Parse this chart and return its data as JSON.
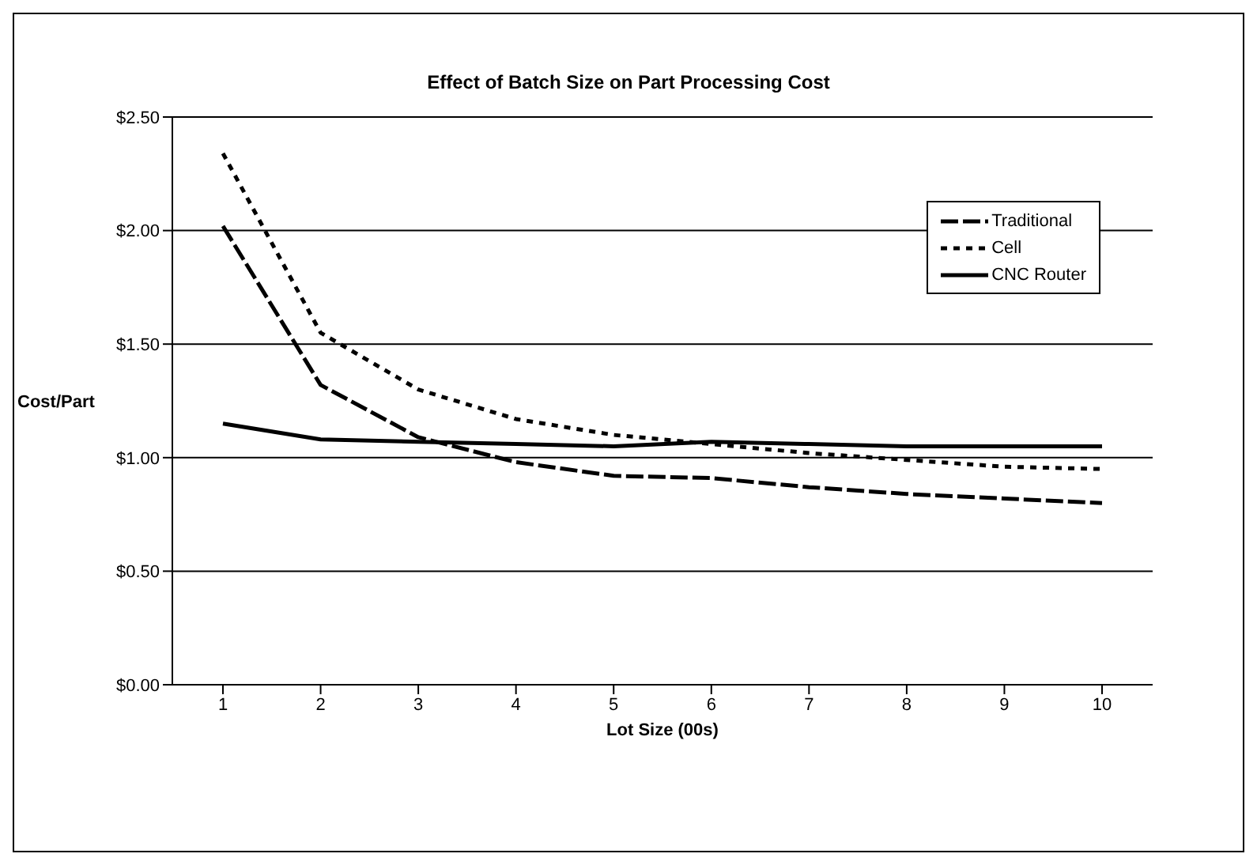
{
  "chart_data": {
    "type": "line",
    "title": "Effect of Batch Size on Part Processing Cost",
    "xlabel": "Lot Size (00s)",
    "ylabel": "Cost/Part",
    "categories": [
      "1",
      "2",
      "3",
      "4",
      "5",
      "6",
      "7",
      "8",
      "9",
      "10"
    ],
    "series": [
      {
        "name": "Traditional",
        "color": "#000000",
        "line_style": "dashed",
        "values": [
          2.02,
          1.32,
          1.09,
          0.98,
          0.92,
          0.91,
          0.87,
          0.84,
          0.82,
          0.8
        ]
      },
      {
        "name": "Cell",
        "color": "#000000",
        "line_style": "dotted",
        "values": [
          2.34,
          1.55,
          1.3,
          1.17,
          1.1,
          1.06,
          1.02,
          0.99,
          0.96,
          0.95
        ]
      },
      {
        "name": "CNC Router",
        "color": "#000000",
        "line_style": "solid",
        "values": [
          1.15,
          1.08,
          1.07,
          1.06,
          1.05,
          1.07,
          1.06,
          1.05,
          1.05,
          1.05
        ]
      }
    ],
    "ylim": [
      0,
      2.5
    ],
    "yticks": [
      {
        "value": 0,
        "label": "$0.00"
      },
      {
        "value": 0.5,
        "label": "$0.50"
      },
      {
        "value": 1,
        "label": "$1.00"
      },
      {
        "value": 1.5,
        "label": "$1.50"
      },
      {
        "value": 2,
        "label": "$2.00"
      },
      {
        "value": 2.5,
        "label": "$2.50"
      }
    ],
    "grid": "y",
    "legend": "right",
    "marker": "none"
  }
}
